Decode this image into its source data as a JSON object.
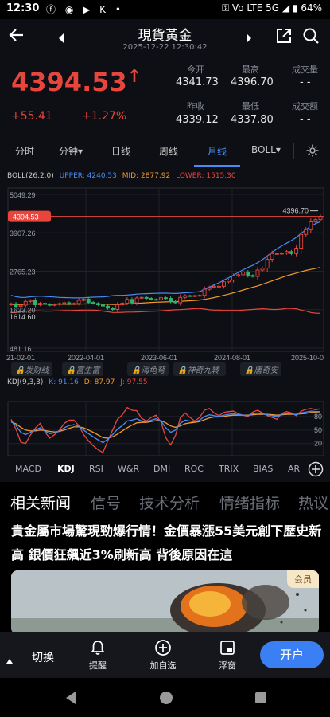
{
  "status_bar": {
    "time": "12:30",
    "icons": "ⓕ ◉ ▶ K •",
    "right": "⚿ Vo LTE 5G ◢ ▮ 64%"
  },
  "header": {
    "title": "現貨黃金",
    "subtitle": "2025-12-22 12:30:42"
  },
  "quote": {
    "price": "4394.53",
    "arrow": "↑",
    "change": "+55.41",
    "change_pct": "+1.27%",
    "stats": [
      {
        "label": "今开",
        "value": "4341.73"
      },
      {
        "label": "最高",
        "value": "4396.70"
      },
      {
        "label": "成交量",
        "value": "- -"
      },
      {
        "label": "昨收",
        "value": "4339.12"
      },
      {
        "label": "最低",
        "value": "4337.80"
      },
      {
        "label": "成交额",
        "value": "- -"
      }
    ]
  },
  "period_tabs": [
    "分时",
    "分钟▾",
    "日线",
    "周线",
    "月线",
    "BOLL▾"
  ],
  "active_period": "月线",
  "chart_data": [
    {
      "type": "candlestick",
      "title": "",
      "indicator": "BOLL(26,2.0)",
      "legend": [
        {
          "name": "UPPER",
          "value": "4240.53",
          "color": "#4a8cf6"
        },
        {
          "name": "MID",
          "value": "2877.92",
          "color": "#f39a2b"
        },
        {
          "name": "LOWER",
          "value": "1515.30",
          "color": "#e8463d"
        }
      ],
      "y_ticks": [
        "5049.29",
        "3907.26",
        "2765.23",
        "1623.20",
        "481.16"
      ],
      "x_ticks": [
        "21-02-01",
        "2022-04-01",
        "2023-06-01",
        "2024-08-01",
        "2025-10-0"
      ],
      "current_price_label": "4394.53",
      "high_marker": "4396.70",
      "low_marker": "1614.60",
      "ylim": [
        481.16,
        5049.29
      ],
      "closes": [
        1800,
        1720,
        1760,
        1870,
        1900,
        1770,
        1815,
        1785,
        1760,
        1780,
        1805,
        1830,
        1790,
        1810,
        1900,
        1940,
        1840,
        1810,
        1770,
        1730,
        1670,
        1630,
        1770,
        1820,
        1930,
        1830,
        1970,
        1990,
        1960,
        1930,
        1920,
        1980,
        1960,
        1870,
        1830,
        1990,
        2040,
        2030,
        2040,
        2050,
        2230,
        2290,
        2320,
        2320,
        2450,
        2500,
        2630,
        2660,
        2740,
        2640,
        2610,
        2800,
        2860,
        3120,
        3290,
        3290,
        3300,
        3350,
        3290,
        3450,
        3860,
        4000,
        4230,
        4300,
        4394.53
      ],
      "upper": [
        2050,
        2010,
        1990,
        1990,
        2010,
        2020,
        2030,
        2020,
        2010,
        2000,
        1990,
        1985,
        1980,
        1975,
        1975,
        1980,
        1990,
        1995,
        2000,
        2005,
        2020,
        2040,
        2050,
        2050,
        2060,
        2070,
        2085,
        2095,
        2100,
        2105,
        2110,
        2115,
        2115,
        2110,
        2105,
        2115,
        2125,
        2135,
        2145,
        2160,
        2220,
        2290,
        2360,
        2420,
        2500,
        2570,
        2650,
        2730,
        2810,
        2880,
        2940,
        3020,
        3110,
        3220,
        3330,
        3430,
        3520,
        3600,
        3680,
        3770,
        3890,
        4000,
        4100,
        4180,
        4240.53
      ],
      "mid": [
        1780,
        1775,
        1780,
        1790,
        1795,
        1795,
        1792,
        1790,
        1790,
        1788,
        1787,
        1786,
        1785,
        1785,
        1790,
        1795,
        1798,
        1800,
        1795,
        1790,
        1785,
        1780,
        1782,
        1786,
        1795,
        1800,
        1810,
        1820,
        1830,
        1840,
        1846,
        1852,
        1857,
        1860,
        1864,
        1870,
        1880,
        1890,
        1900,
        1910,
        1930,
        1955,
        1985,
        2015,
        2050,
        2085,
        2125,
        2165,
        2210,
        2250,
        2290,
        2330,
        2380,
        2430,
        2480,
        2530,
        2580,
        2630,
        2670,
        2710,
        2750,
        2790,
        2820,
        2850,
        2877.92
      ],
      "lower": [
        1530,
        1540,
        1560,
        1580,
        1590,
        1590,
        1585,
        1580,
        1580,
        1585,
        1590,
        1595,
        1595,
        1600,
        1605,
        1610,
        1610,
        1610,
        1600,
        1580,
        1560,
        1540,
        1540,
        1545,
        1550,
        1550,
        1555,
        1560,
        1570,
        1575,
        1580,
        1590,
        1600,
        1610,
        1620,
        1625,
        1635,
        1645,
        1655,
        1660,
        1640,
        1620,
        1610,
        1610,
        1600,
        1600,
        1600,
        1600,
        1610,
        1620,
        1630,
        1640,
        1650,
        1640,
        1630,
        1630,
        1640,
        1660,
        1660,
        1650,
        1610,
        1580,
        1540,
        1520,
        1515.3
      ]
    },
    {
      "type": "line",
      "title": "",
      "indicator": "KDJ(9,3,3)",
      "legend": [
        {
          "name": "K",
          "value": "91.16",
          "color": "#4a8cf6"
        },
        {
          "name": "D",
          "value": "87.97",
          "color": "#f39a2b"
        },
        {
          "name": "J",
          "value": "97.55",
          "color": "#e8463d"
        }
      ],
      "y_ticks": [
        "80",
        "50",
        "20"
      ],
      "ylim": [
        0,
        110
      ],
      "K": [
        70,
        60,
        45,
        40,
        45,
        50,
        55,
        48,
        42,
        44,
        48,
        55,
        60,
        62,
        58,
        50,
        42,
        35,
        28,
        22,
        30,
        40,
        52,
        60,
        70,
        72,
        75,
        70,
        68,
        72,
        75,
        70,
        55,
        45,
        50,
        65,
        72,
        70,
        68,
        72,
        80,
        84,
        82,
        80,
        83,
        85,
        86,
        84,
        83,
        82,
        86,
        88,
        86,
        84,
        82,
        80,
        85,
        87,
        86,
        84,
        88,
        90,
        92,
        91,
        91.16
      ],
      "D": [
        68,
        64,
        56,
        50,
        48,
        48,
        50,
        49,
        47,
        46,
        47,
        50,
        54,
        57,
        57,
        55,
        50,
        45,
        39,
        33,
        32,
        35,
        41,
        48,
        55,
        61,
        66,
        67,
        67,
        69,
        71,
        71,
        66,
        59,
        56,
        59,
        64,
        66,
        67,
        69,
        73,
        77,
        79,
        79,
        80,
        82,
        83,
        83,
        83,
        83,
        84,
        85,
        85,
        85,
        84,
        83,
        84,
        85,
        85,
        85,
        86,
        87,
        89,
        89,
        87.97
      ],
      "J": [
        74,
        52,
        23,
        20,
        39,
        54,
        65,
        46,
        32,
        40,
        50,
        65,
        72,
        72,
        60,
        40,
        26,
        15,
        6,
        0,
        26,
        50,
        74,
        84,
        100,
        94,
        93,
        76,
        70,
        78,
        83,
        68,
        33,
        17,
        38,
        77,
        88,
        78,
        70,
        78,
        94,
        98,
        88,
        82,
        89,
        91,
        92,
        86,
        83,
        80,
        90,
        94,
        88,
        82,
        78,
        74,
        87,
        91,
        88,
        82,
        92,
        96,
        98,
        95,
        97.55
      ]
    }
  ],
  "signal_tags": [
    "发财线",
    "富生富",
    "海龟弩",
    "神奇九转",
    "唐奇安"
  ],
  "indicator_tabs": [
    "MACD",
    "KDJ",
    "RSI",
    "W&R",
    "DMI",
    "ROC",
    "TRIX",
    "BIAS",
    "AR"
  ],
  "active_indicator": "KDJ",
  "news_tabs": [
    "相关新闻",
    "信号",
    "技术分析",
    "情绪指标",
    "热议"
  ],
  "active_news_tab": "相关新闻",
  "headline": "貴金屬市場驚現勁爆行情！金價暴漲55美元創下歷史新高 銀價狂飆近3%刷新高 背後原因在這",
  "member_badge": "会员",
  "bottom_bar": {
    "switch_label": "切换",
    "alert_label": "提醒",
    "watchlist_label": "加自选",
    "float_label": "浮窗",
    "open_account_label": "开户"
  },
  "colors": {
    "up": "#e8463d",
    "down": "#2fb26a",
    "accent": "#4a8cf6",
    "mid": "#f39a2b"
  }
}
